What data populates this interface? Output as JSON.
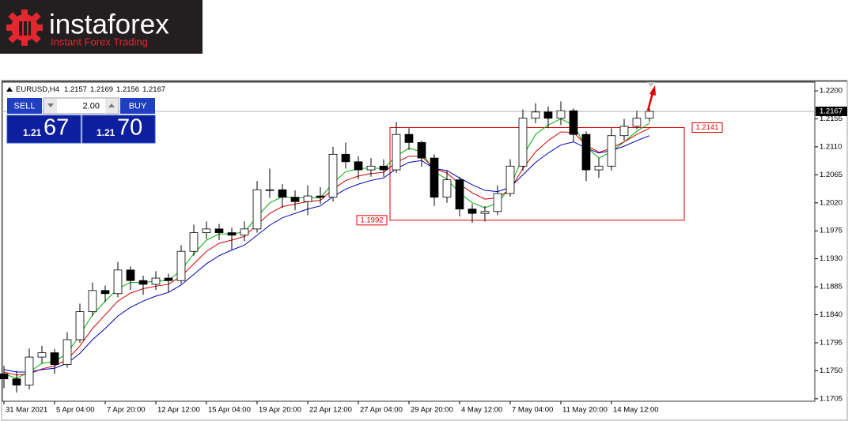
{
  "logo": {
    "brand": "instaforex",
    "tagline": "Instant Forex Trading"
  },
  "trade_panel": {
    "sell": "SELL",
    "buy": "BUY",
    "lots": "2.00",
    "sell_big": "1.21",
    "sell_pips": "67",
    "buy_big": "1.21",
    "buy_pips": "70"
  },
  "chart_data": {
    "type": "candlestick",
    "symbol": "EURUSD,H4",
    "header_values": [
      1.2157,
      1.2169,
      1.2156,
      1.2167
    ],
    "x": [
      0,
      4,
      8,
      12,
      16,
      20,
      24,
      28,
      32,
      36,
      40,
      44,
      48,
      52,
      56,
      60,
      64,
      68,
      72,
      76,
      80,
      84,
      88,
      92,
      96,
      100,
      104,
      108,
      112,
      116,
      120,
      124,
      128,
      132,
      136,
      140,
      144,
      148,
      152,
      156,
      160,
      164,
      168,
      172,
      176,
      180,
      184,
      188,
      192,
      196,
      200,
      204
    ],
    "open": [
      1.1745,
      1.1737,
      1.1727,
      1.1772,
      1.1779,
      1.176,
      1.18,
      1.1845,
      1.1879,
      1.1874,
      1.1912,
      1.1895,
      1.1889,
      1.1899,
      1.1895,
      1.1942,
      1.1972,
      1.1978,
      1.1972,
      1.1968,
      1.1978,
      1.2041,
      1.2041,
      1.2029,
      1.2022,
      1.2031,
      1.2029,
      1.2098,
      1.2086,
      1.2073,
      1.2079,
      1.2073,
      1.213,
      1.2117,
      1.2092,
      1.2029,
      1.2057,
      1.201,
      1.2003,
      1.2006,
      1.2035,
      1.2079,
      1.2156,
      1.2166,
      1.2156,
      1.2168,
      1.213,
      1.2073,
      1.2079,
      1.2128,
      1.2143,
      1.2156
    ],
    "high": [
      1.1758,
      1.175,
      1.1786,
      1.179,
      1.1785,
      1.1812,
      1.1858,
      1.1892,
      1.1887,
      1.1925,
      1.1918,
      1.1903,
      1.191,
      1.1906,
      1.1952,
      1.1985,
      1.199,
      1.1986,
      1.198,
      1.199,
      1.2055,
      1.2075,
      1.205,
      1.204,
      1.2048,
      1.2045,
      1.211,
      1.2117,
      1.2095,
      1.2092,
      1.209,
      1.215,
      1.214,
      1.212,
      1.2098,
      1.2072,
      1.2062,
      1.2018,
      1.2015,
      1.2048,
      1.209,
      1.217,
      1.218,
      1.2175,
      1.2183,
      1.2172,
      1.2135,
      1.2092,
      1.214,
      1.2155,
      1.2168,
      1.2172
    ],
    "low": [
      1.1722,
      1.1715,
      1.172,
      1.1762,
      1.1745,
      1.1755,
      1.1795,
      1.1838,
      1.186,
      1.1868,
      1.188,
      1.1872,
      1.188,
      1.1876,
      1.189,
      1.1935,
      1.1962,
      1.196,
      1.1945,
      1.1958,
      1.1972,
      1.2028,
      1.2012,
      1.2008,
      1.2,
      1.2018,
      1.2022,
      1.2075,
      1.2058,
      1.2062,
      1.2062,
      1.2068,
      1.2105,
      1.2078,
      1.2015,
      1.202,
      1.1998,
      1.1988,
      1.199,
      1.2,
      1.203,
      1.2072,
      1.2148,
      1.214,
      1.2145,
      1.2118,
      1.2055,
      1.206,
      1.2072,
      1.212,
      1.2138,
      1.215
    ],
    "close": [
      1.1737,
      1.1727,
      1.1772,
      1.1779,
      1.176,
      1.18,
      1.1845,
      1.1879,
      1.1874,
      1.1912,
      1.1895,
      1.1889,
      1.1899,
      1.1895,
      1.1942,
      1.1972,
      1.1978,
      1.1972,
      1.1968,
      1.1978,
      1.2041,
      1.2041,
      1.2029,
      1.2022,
      1.2031,
      1.2029,
      1.2098,
      1.2086,
      1.2073,
      1.2079,
      1.2073,
      1.213,
      1.2117,
      1.2092,
      1.2029,
      1.2057,
      1.201,
      1.2003,
      1.2006,
      1.2035,
      1.2079,
      1.2156,
      1.2166,
      1.2156,
      1.2168,
      1.213,
      1.2073,
      1.2079,
      1.2128,
      1.2143,
      1.2156,
      1.2167
    ],
    "up_color": "#ffffff",
    "down_color": "#000000",
    "series": [
      {
        "color": "#00b000",
        "values": [
          1.1745,
          1.1738,
          1.1748,
          1.1762,
          1.1765,
          1.1778,
          1.1808,
          1.184,
          1.1862,
          1.1882,
          1.1892,
          1.1892,
          1.1894,
          1.1895,
          1.1912,
          1.1938,
          1.196,
          1.197,
          1.197,
          1.1973,
          1.1998,
          1.202,
          1.203,
          1.2028,
          1.2028,
          1.2028,
          1.2052,
          1.207,
          1.2075,
          1.2076,
          1.2075,
          1.2095,
          1.2108,
          1.2102,
          1.207,
          1.2058,
          1.2036,
          1.202,
          1.2012,
          1.202,
          1.2045,
          1.2095,
          1.213,
          1.2145,
          1.2155,
          1.2145,
          1.211,
          1.2092,
          1.2102,
          1.2118,
          1.2135,
          1.2148
        ]
      },
      {
        "color": "#d00000",
        "values": [
          1.1748,
          1.1743,
          1.1745,
          1.1753,
          1.1758,
          1.1768,
          1.179,
          1.1818,
          1.184,
          1.1862,
          1.1875,
          1.1882,
          1.1886,
          1.1889,
          1.1902,
          1.1922,
          1.1942,
          1.1955,
          1.196,
          1.1966,
          1.1985,
          1.2003,
          1.2014,
          1.2018,
          1.2022,
          1.2024,
          1.2042,
          1.2056,
          1.2063,
          1.2067,
          1.2069,
          1.2085,
          1.2095,
          1.2095,
          1.2075,
          1.2068,
          1.205,
          1.2036,
          1.2026,
          1.2028,
          1.2042,
          1.2075,
          1.2102,
          1.212,
          1.2134,
          1.2133,
          1.2113,
          1.2101,
          1.2108,
          1.2118,
          1.213,
          1.214
        ]
      },
      {
        "color": "#0000b0",
        "values": [
          1.1752,
          1.1748,
          1.1748,
          1.1752,
          1.1754,
          1.1762,
          1.1778,
          1.18,
          1.1818,
          1.1838,
          1.1852,
          1.1862,
          1.187,
          1.1876,
          1.1888,
          1.1905,
          1.1922,
          1.1935,
          1.1944,
          1.1952,
          1.1968,
          1.1984,
          1.1996,
          1.2003,
          1.201,
          1.2015,
          1.203,
          1.2042,
          1.205,
          1.2056,
          1.206,
          1.2075,
          1.2085,
          1.2088,
          1.2075,
          1.2072,
          1.206,
          1.2049,
          1.204,
          1.2038,
          1.2045,
          1.2065,
          1.2085,
          1.21,
          1.2113,
          1.2118,
          1.2108,
          1.21,
          1.2104,
          1.2111,
          1.212,
          1.2128
        ]
      }
    ],
    "xlim": [
      -0.5,
      256.25
    ],
    "xticks": [
      {
        "value": 0,
        "label": "31 Mar 2021"
      },
      {
        "value": 16,
        "label": "5 Apr 04:00"
      },
      {
        "value": 32,
        "label": "7 Apr 20:00"
      },
      {
        "value": 48,
        "label": "12 Apr 12:00"
      },
      {
        "value": 64,
        "label": "15 Apr 04:00"
      },
      {
        "value": 80,
        "label": "19 Apr 20:00"
      },
      {
        "value": 96,
        "label": "22 Apr 12:00"
      },
      {
        "value": 112,
        "label": "27 Apr 04:00"
      },
      {
        "value": 128,
        "label": "29 Apr 20:00"
      },
      {
        "value": 144,
        "label": "4 May 12:00"
      },
      {
        "value": 160,
        "label": "7 May 04:00"
      },
      {
        "value": 176,
        "label": "11 May 20:00"
      },
      {
        "value": 192,
        "label": "14 May 12:00"
      }
    ],
    "ylim": [
      1.1701,
      1.2214
    ],
    "yticks": [
      {
        "value": 1.22,
        "label": "1.2200"
      },
      1.2155,
      {
        "value": 1.211,
        "label": "1.2110"
      },
      1.2065,
      {
        "value": 1.202,
        "label": "1.2020"
      },
      1.1975,
      {
        "value": 1.193,
        "label": "1.1930"
      },
      1.1885,
      {
        "value": 1.184,
        "label": "1.1840"
      },
      1.1795,
      {
        "value": 1.175,
        "label": "1.1750"
      },
      1.1705
    ],
    "current_price": 1.2167,
    "rectangle": {
      "x": [
        122,
        215
      ],
      "top": 1.2141,
      "bottom": 1.1992,
      "color": "#e00000"
    }
  }
}
